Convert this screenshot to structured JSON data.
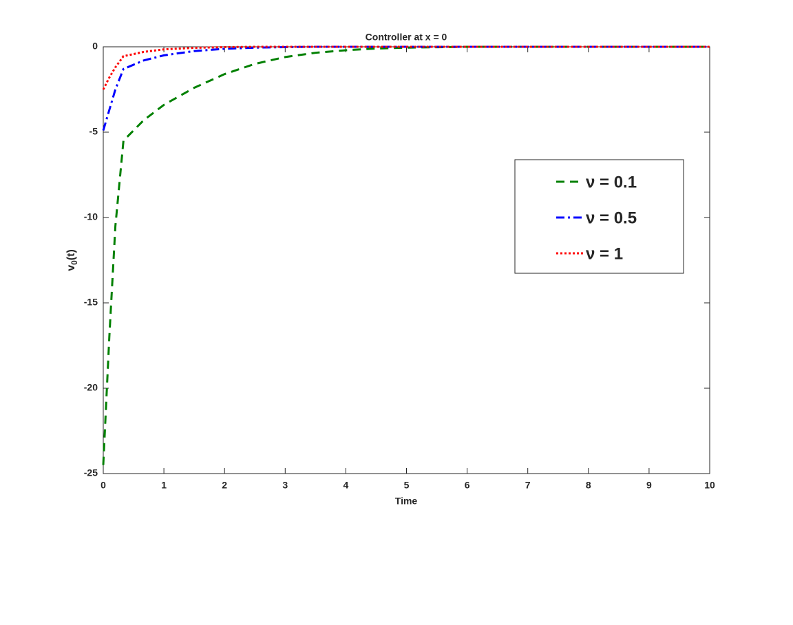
{
  "chart_data": {
    "type": "line",
    "title": "Controller at x = 0",
    "xlabel": "Time",
    "ylabel": {
      "base": "v",
      "sub": "0",
      "rest": "(t)"
    },
    "x": [
      0,
      0.1,
      0.2,
      0.333,
      0.667,
      1,
      1.5,
      2,
      2.5,
      3,
      3.5,
      4,
      4.5,
      5,
      6,
      7,
      8,
      9,
      10
    ],
    "series": [
      {
        "name": "ν = 0.1",
        "color": "#008000",
        "linestyle": "dashed",
        "values": [
          -24.5,
          -17,
          -10.5,
          -5.5,
          -4.3,
          -3.4,
          -2.4,
          -1.6,
          -1.0,
          -0.6,
          -0.35,
          -0.2,
          -0.1,
          -0.05,
          0,
          0,
          0,
          0,
          0
        ]
      },
      {
        "name": "ν = 0.5",
        "color": "#0000ff",
        "linestyle": "dashdot",
        "values": [
          -4.9,
          -3.7,
          -2.5,
          -1.3,
          -0.8,
          -0.5,
          -0.25,
          -0.12,
          -0.05,
          -0.02,
          0,
          0,
          0,
          0,
          0,
          0,
          0,
          0,
          0
        ]
      },
      {
        "name": "ν = 1",
        "color": "#ff0000",
        "linestyle": "dotted",
        "values": [
          -2.5,
          -1.8,
          -1.2,
          -0.55,
          -0.3,
          -0.15,
          -0.06,
          -0.02,
          0,
          0,
          0,
          0,
          0,
          0,
          0,
          0,
          0,
          0,
          0
        ]
      }
    ],
    "xlim": [
      0,
      10
    ],
    "xticks": [
      0,
      1,
      2,
      3,
      4,
      5,
      6,
      7,
      8,
      9,
      10
    ],
    "ylim": [
      -25,
      0
    ],
    "yticks": [
      -25,
      -20,
      -15,
      -10,
      -5,
      0
    ],
    "grid": false,
    "legend": "east"
  }
}
